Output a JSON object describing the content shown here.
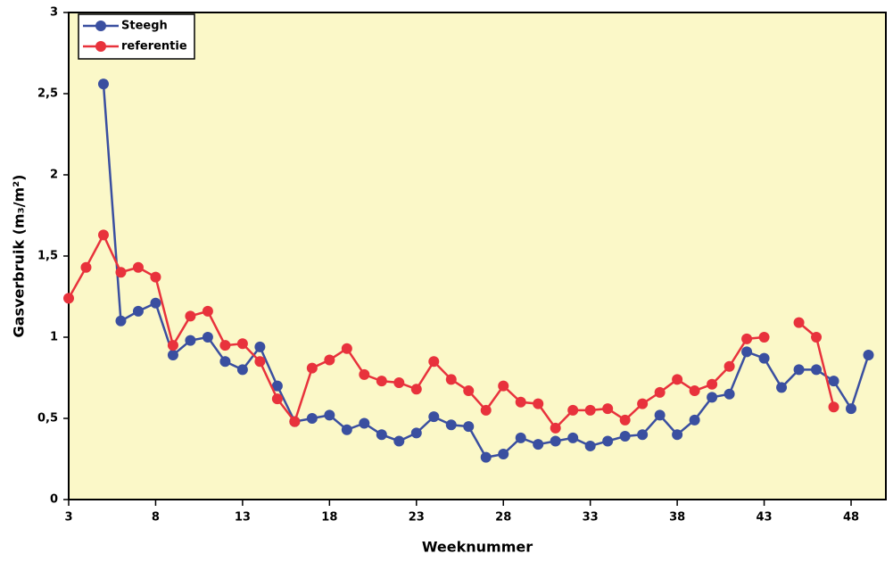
{
  "chart_data": {
    "type": "line",
    "x_label": "Weeknummer",
    "y_label": "Gasverbruik (m₃/m²)",
    "x": [
      3,
      4,
      5,
      6,
      7,
      8,
      9,
      10,
      11,
      12,
      13,
      14,
      15,
      16,
      17,
      18,
      19,
      20,
      21,
      22,
      23,
      24,
      25,
      26,
      27,
      28,
      29,
      30,
      31,
      32,
      33,
      34,
      35,
      36,
      37,
      38,
      39,
      40,
      41,
      42,
      43,
      44,
      45,
      46,
      47,
      48,
      49
    ],
    "series": [
      {
        "name": "Steegh",
        "color": "#3a4fa0",
        "values": [
          null,
          null,
          2.56,
          1.1,
          1.16,
          1.21,
          0.89,
          0.98,
          1.0,
          0.85,
          0.8,
          0.94,
          0.7,
          0.48,
          0.5,
          0.52,
          0.43,
          0.47,
          0.4,
          0.36,
          0.41,
          0.51,
          0.46,
          0.45,
          0.26,
          0.28,
          0.38,
          0.34,
          0.36,
          0.38,
          0.33,
          0.36,
          0.39,
          0.4,
          0.52,
          0.4,
          0.49,
          0.63,
          0.65,
          0.91,
          0.87,
          0.69,
          0.8,
          0.8,
          0.73,
          0.56,
          0.89
        ]
      },
      {
        "name": "referentie",
        "color": "#e8323c",
        "values": [
          1.24,
          1.43,
          1.63,
          1.4,
          1.43,
          1.37,
          0.95,
          1.13,
          1.16,
          0.95,
          0.96,
          0.85,
          0.62,
          0.48,
          0.81,
          0.86,
          0.93,
          0.77,
          0.73,
          0.72,
          0.68,
          0.85,
          0.74,
          0.67,
          0.55,
          0.7,
          0.6,
          0.59,
          0.44,
          0.55,
          0.55,
          0.56,
          0.49,
          0.59,
          0.66,
          0.74,
          0.67,
          0.71,
          0.82,
          0.99,
          1.0,
          null,
          1.09,
          1.0,
          0.57,
          null,
          null
        ]
      }
    ],
    "xlim": [
      3,
      50
    ],
    "xticks": [
      3,
      8,
      13,
      18,
      23,
      28,
      33,
      38,
      43,
      48
    ],
    "ylim": [
      0,
      3
    ],
    "yticks": [
      0,
      {
        "value": 0.5,
        "label": "0,5"
      },
      1,
      {
        "value": 1.5,
        "label": "1,5"
      },
      2,
      {
        "value": 2.5,
        "label": "2,5"
      },
      3
    ],
    "legend": "upper left",
    "background": "#fbf8c8"
  }
}
